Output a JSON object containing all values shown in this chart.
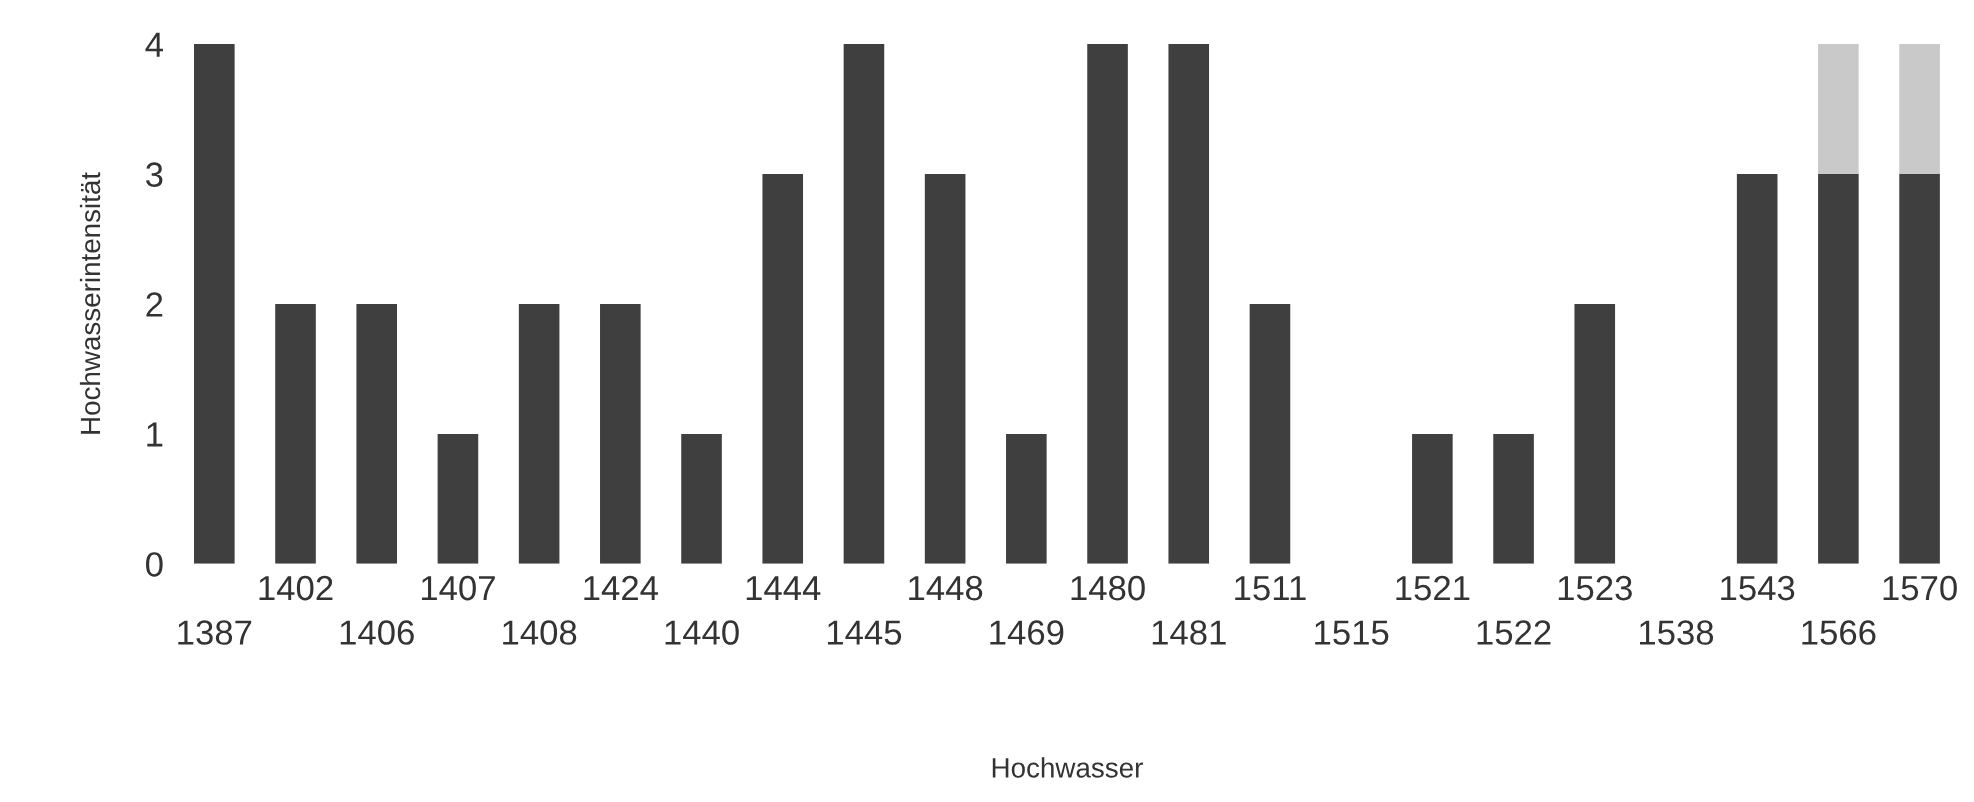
{
  "chart_data": {
    "type": "bar",
    "stacked": true,
    "xlabel": "Hochwasser",
    "ylabel": "Hochwasserintensität",
    "categories": [
      "1387",
      "1402",
      "1406",
      "1407",
      "1408",
      "1424",
      "1440",
      "1444",
      "1445",
      "1448",
      "1469",
      "1480",
      "1481",
      "1511",
      "1515",
      "1521",
      "1522",
      "1523",
      "1538",
      "1543",
      "1566",
      "1570"
    ],
    "series": [
      {
        "color": "#3f3f3f",
        "values": [
          4,
          2,
          2,
          1,
          2,
          2,
          1,
          3,
          4,
          3,
          1,
          4,
          4,
          2,
          0,
          1,
          1,
          2,
          0,
          3,
          3,
          3
        ]
      },
      {
        "color": "#c9c9c9",
        "values": [
          0,
          0,
          0,
          0,
          0,
          0,
          0,
          0,
          0,
          0,
          0,
          0,
          0,
          0,
          0,
          0,
          0,
          0,
          0,
          0,
          1,
          1
        ]
      }
    ],
    "ylim": [
      0,
      4
    ],
    "yticks": [
      0,
      1,
      2,
      3,
      4
    ],
    "grid": false,
    "legend": false
  }
}
